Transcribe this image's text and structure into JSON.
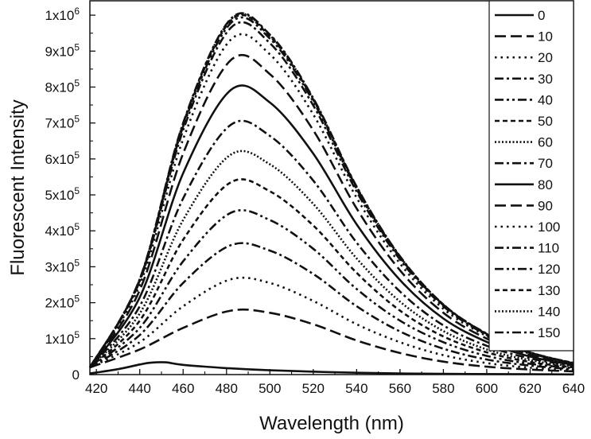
{
  "chart_data": {
    "type": "line",
    "xlabel": "Wavelength (nm)",
    "ylabel": "Fluorescent Intensity",
    "xlim": [
      417,
      640
    ],
    "ylim": [
      0,
      1040000
    ],
    "x_ticks": [
      420,
      440,
      460,
      480,
      500,
      520,
      540,
      560,
      580,
      600,
      620,
      640
    ],
    "y_ticks": [
      {
        "mantissa": "0",
        "exp": ""
      },
      {
        "mantissa": "1x10",
        "exp": "5"
      },
      {
        "mantissa": "2x10",
        "exp": "5"
      },
      {
        "mantissa": "3x10",
        "exp": "5"
      },
      {
        "mantissa": "4x10",
        "exp": "5"
      },
      {
        "mantissa": "5x10",
        "exp": "5"
      },
      {
        "mantissa": "6x10",
        "exp": "5"
      },
      {
        "mantissa": "7x10",
        "exp": "5"
      },
      {
        "mantissa": "8x10",
        "exp": "5"
      },
      {
        "mantissa": "9x10",
        "exp": "5"
      },
      {
        "mantissa": "1x10",
        "exp": "6"
      }
    ],
    "y_tick_values": [
      0,
      100000,
      200000,
      300000,
      400000,
      500000,
      600000,
      700000,
      800000,
      900000,
      1000000
    ],
    "grid": false,
    "legend_position": "top-right",
    "series": [
      {
        "name": "0",
        "dash": "solid",
        "x": [
          417,
          430,
          440,
          445,
          452,
          460,
          480,
          500,
          540,
          580,
          620,
          640
        ],
        "y": [
          3000,
          15000,
          28000,
          33000,
          34000,
          27000,
          18000,
          12000,
          5000,
          2000,
          1000,
          500
        ]
      },
      {
        "name": "10",
        "dash": "dash",
        "x": [
          417,
          440,
          460,
          482,
          500,
          520,
          540,
          560,
          580,
          600,
          620,
          640
        ],
        "y": [
          20000,
          70000,
          130000,
          178000,
          172000,
          140000,
          95000,
          60000,
          36000,
          22000,
          14000,
          9000
        ]
      },
      {
        "name": "20",
        "dash": "dot",
        "x": [
          417,
          440,
          460,
          482,
          500,
          520,
          540,
          560,
          580,
          600,
          620,
          640
        ],
        "y": [
          20000,
          90000,
          190000,
          265000,
          255000,
          205000,
          140000,
          90000,
          54000,
          32000,
          19000,
          12000
        ]
      },
      {
        "name": "30",
        "dash": "dashdot",
        "x": [
          417,
          440,
          460,
          482,
          500,
          520,
          540,
          560,
          580,
          600,
          620,
          640
        ],
        "y": [
          20000,
          110000,
          255000,
          360000,
          345000,
          280000,
          190000,
          120000,
          72000,
          42000,
          25000,
          15000
        ]
      },
      {
        "name": "40",
        "dash": "dashdotdot",
        "x": [
          417,
          440,
          460,
          482,
          500,
          520,
          540,
          560,
          580,
          600,
          620,
          640
        ],
        "y": [
          20000,
          130000,
          315000,
          450000,
          430000,
          350000,
          238000,
          150000,
          90000,
          52000,
          30000,
          18000
        ]
      },
      {
        "name": "50",
        "dash": "shortdash",
        "x": [
          417,
          440,
          460,
          482,
          500,
          520,
          540,
          560,
          580,
          600,
          620,
          640
        ],
        "y": [
          20000,
          150000,
          375000,
          535000,
          510000,
          415000,
          283000,
          178000,
          106000,
          62000,
          35000,
          20000
        ]
      },
      {
        "name": "60",
        "dash": "shortdot",
        "x": [
          417,
          440,
          460,
          482,
          500,
          520,
          540,
          560,
          580,
          600,
          620,
          640
        ],
        "y": [
          20000,
          170000,
          430000,
          612000,
          585000,
          475000,
          323000,
          203000,
          121000,
          70000,
          40000,
          22000
        ]
      },
      {
        "name": "70",
        "dash": "dashdot",
        "x": [
          417,
          440,
          460,
          482,
          500,
          520,
          540,
          560,
          580,
          600,
          620,
          640
        ],
        "y": [
          20000,
          190000,
          490000,
          695000,
          664000,
          540000,
          367000,
          231000,
          137000,
          80000,
          45000,
          25000
        ]
      },
      {
        "name": "80",
        "dash": "solid",
        "x": [
          417,
          440,
          460,
          482,
          500,
          520,
          540,
          560,
          580,
          600,
          620,
          640
        ],
        "y": [
          20000,
          215000,
          560000,
          792000,
          757000,
          615000,
          418000,
          263000,
          156000,
          91000,
          50000,
          27000
        ]
      },
      {
        "name": "90",
        "dash": "dash",
        "x": [
          417,
          440,
          460,
          482,
          500,
          520,
          540,
          560,
          580,
          600,
          620,
          640
        ],
        "y": [
          20000,
          235000,
          615000,
          875000,
          836000,
          680000,
          462000,
          290000,
          172000,
          100000,
          55000,
          29000
        ]
      },
      {
        "name": "100",
        "dash": "dot",
        "x": [
          417,
          440,
          460,
          482,
          500,
          520,
          540,
          560,
          580,
          600,
          620,
          640
        ],
        "y": [
          20000,
          250000,
          655000,
          932000,
          891000,
          724000,
          492000,
          309000,
          183000,
          107000,
          58000,
          30000
        ]
      },
      {
        "name": "110",
        "dash": "dashdot",
        "x": [
          417,
          440,
          460,
          482,
          500,
          520,
          540,
          560,
          580,
          600,
          620,
          640
        ],
        "y": [
          20000,
          260000,
          680000,
          965000,
          922000,
          749000,
          509000,
          320000,
          190000,
          110000,
          60000,
          31000
        ]
      },
      {
        "name": "120",
        "dash": "dashdotdot",
        "x": [
          417,
          440,
          460,
          482,
          500,
          520,
          540,
          560,
          580,
          600,
          620,
          640
        ],
        "y": [
          20000,
          262000,
          690000,
          978000,
          935000,
          760000,
          516000,
          325000,
          193000,
          112000,
          61000,
          31000
        ]
      },
      {
        "name": "130",
        "dash": "shortdash",
        "x": [
          417,
          440,
          460,
          482,
          500,
          520,
          540,
          560,
          580,
          600,
          620,
          640
        ],
        "y": [
          20000,
          264000,
          695000,
          985000,
          941000,
          765000,
          520000,
          327000,
          194000,
          113000,
          61000,
          32000
        ]
      },
      {
        "name": "140",
        "dash": "shortdot",
        "x": [
          417,
          440,
          460,
          482,
          500,
          520,
          540,
          560,
          580,
          600,
          620,
          640
        ],
        "y": [
          20000,
          265000,
          698000,
          988000,
          944000,
          767000,
          522000,
          328000,
          195000,
          113000,
          62000,
          32000
        ]
      },
      {
        "name": "150",
        "dash": "dashdot",
        "x": [
          417,
          440,
          460,
          482,
          500,
          520,
          540,
          560,
          580,
          600,
          620,
          640
        ],
        "y": [
          20000,
          266000,
          700000,
          990000,
          946000,
          769000,
          523000,
          329000,
          195000,
          114000,
          62000,
          32000
        ]
      }
    ]
  }
}
